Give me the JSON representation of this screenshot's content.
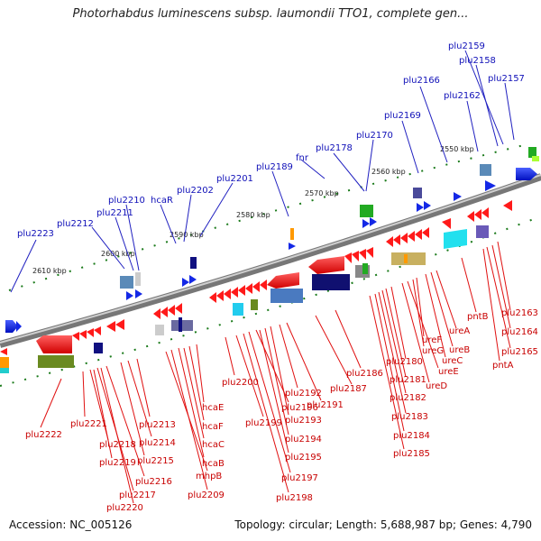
{
  "title": "Photorhabdus luminescens subsp. laumondii TTO1, complete gen...",
  "footer": {
    "accession": "Accession: NC_005126",
    "summary": "Topology: circular; Length: 5,688,987 bp; Genes: 4,790"
  },
  "kbp_labels": [
    "2610 kbp",
    "2600 kbp",
    "2590 kbp",
    "2580 kbp",
    "2570 kbp",
    "2560 kbp",
    "2550 kbp"
  ],
  "top_genes": [
    "plu2223",
    "plu2212",
    "plu2211",
    "plu2210",
    "hcaR",
    "plu2202",
    "plu2201",
    "plu2189",
    "fnr",
    "plu2178",
    "plu2170",
    "plu2169",
    "plu2166",
    "plu2162",
    "plu2159",
    "plu2158",
    "plu2157"
  ],
  "bottom_genes": [
    "plu2222",
    "plu2221",
    "plu2218",
    "plu2219",
    "plu2217",
    "plu2220",
    "plu2216",
    "plu2215",
    "plu2214",
    "plu2213",
    "mhpB",
    "plu2209",
    "hcaB",
    "hcaC",
    "hcaF",
    "hcaE",
    "plu2200",
    "plu2199",
    "plu2198",
    "plu2197",
    "plu2196",
    "plu2195",
    "plu2194",
    "plu2193",
    "plu2192",
    "plu2191",
    "plu2187",
    "plu2186",
    "plu2185",
    "plu2184",
    "plu2183",
    "plu2182",
    "plu2181",
    "plu2180",
    "ureD",
    "ureE",
    "ureG",
    "ureF",
    "ureC",
    "ureB",
    "ureA",
    "pntB",
    "pntA",
    "plu2165",
    "plu2164",
    "plu2163"
  ],
  "colors": {
    "top_label": "#1010b8",
    "bottom_label": "#c80000",
    "forward_gene": "#1428e6",
    "reverse_gene": "#ff1a1a",
    "tick": "#1a7a1a",
    "backbone": "#8a8a8a"
  }
}
